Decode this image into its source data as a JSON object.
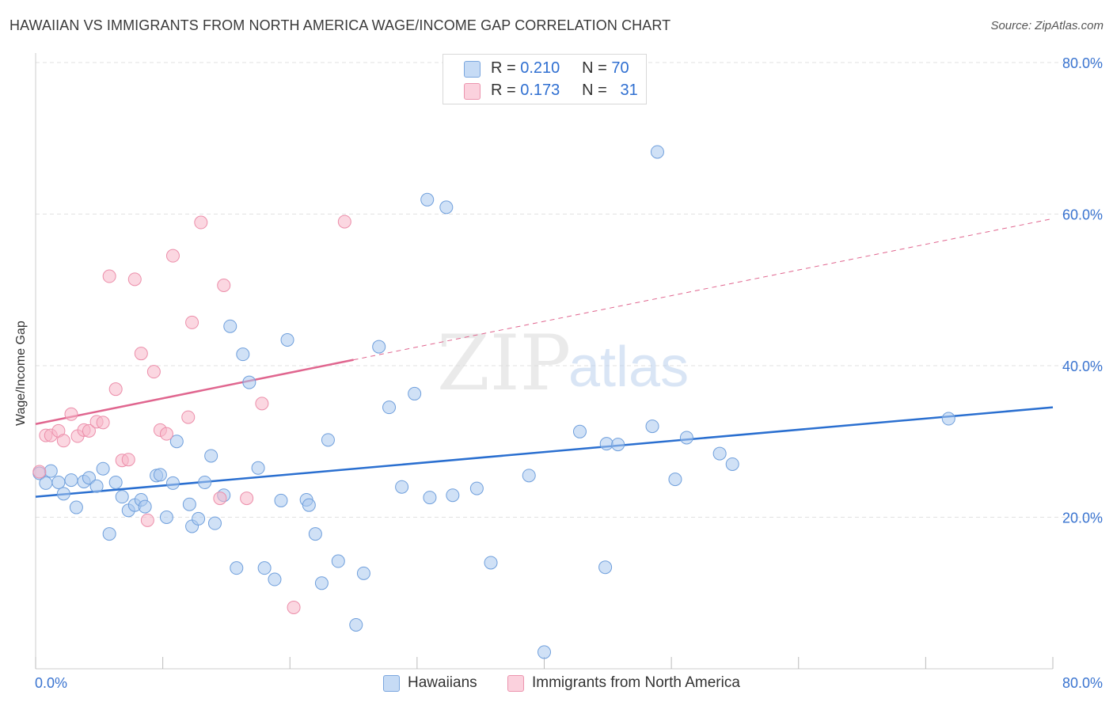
{
  "title": "HAWAIIAN VS IMMIGRANTS FROM NORTH AMERICA WAGE/INCOME GAP CORRELATION CHART",
  "source": "Source: ZipAtlas.com",
  "watermark": {
    "zip": "ZIP",
    "atlas": "atlas"
  },
  "legend": {
    "rows": [
      {
        "r_label": "R =",
        "r_value": "0.210",
        "n_label": "N =",
        "n_value": "70",
        "color": "#a9c8ef"
      },
      {
        "r_label": "R =",
        "r_value": "0.173",
        "n_label": "N =",
        "n_value": "31",
        "color": "#f7b6c8"
      }
    ]
  },
  "bottom_legend": [
    {
      "label": "Hawaiians",
      "color": "#a9c8ef"
    },
    {
      "label": "Immigrants from North America",
      "color": "#f7b6c8"
    }
  ],
  "chart_data": {
    "type": "scatter",
    "title": "HAWAIIAN VS IMMIGRANTS FROM NORTH AMERICA WAGE/INCOME GAP CORRELATION CHART",
    "xlabel": "",
    "ylabel": "Wage/Income Gap",
    "xlim": [
      0,
      80
    ],
    "ylim": [
      0,
      84
    ],
    "x_tick_labels": [
      "0.0%",
      "80.0%"
    ],
    "y_ticks": [
      20,
      40,
      60,
      80
    ],
    "y_tick_labels": [
      "20.0%",
      "40.0%",
      "60.0%",
      "80.0%"
    ],
    "grid": true,
    "legend_position": "top-center",
    "series": [
      {
        "name": "Hawaiians",
        "color": "#a9c8ef",
        "edge": "#6f9fdc",
        "line_color": "#2a6fd0",
        "trend": {
          "x0": 0,
          "y0": 22.7,
          "x1": 80,
          "y1": 34.5,
          "dashed_from": null
        },
        "points": [
          [
            0.3,
            25.8
          ],
          [
            0.8,
            24.5
          ],
          [
            1.2,
            26.1
          ],
          [
            1.8,
            24.6
          ],
          [
            2.2,
            23.1
          ],
          [
            2.8,
            24.9
          ],
          [
            3.2,
            21.3
          ],
          [
            3.8,
            24.7
          ],
          [
            4.2,
            25.2
          ],
          [
            4.8,
            24.1
          ],
          [
            5.3,
            26.4
          ],
          [
            5.8,
            17.8
          ],
          [
            6.3,
            24.6
          ],
          [
            6.8,
            22.7
          ],
          [
            7.3,
            20.9
          ],
          [
            7.8,
            21.6
          ],
          [
            8.3,
            22.3
          ],
          [
            8.6,
            21.4
          ],
          [
            9.5,
            25.5
          ],
          [
            9.8,
            25.6
          ],
          [
            10.3,
            20.0
          ],
          [
            10.8,
            24.5
          ],
          [
            11.1,
            30.0
          ],
          [
            12.1,
            21.7
          ],
          [
            12.3,
            18.8
          ],
          [
            12.8,
            19.8
          ],
          [
            13.3,
            24.6
          ],
          [
            13.8,
            28.1
          ],
          [
            14.1,
            19.2
          ],
          [
            14.8,
            22.9
          ],
          [
            15.3,
            45.2
          ],
          [
            15.8,
            13.3
          ],
          [
            16.3,
            41.5
          ],
          [
            16.8,
            37.8
          ],
          [
            17.5,
            26.5
          ],
          [
            18.0,
            13.3
          ],
          [
            18.8,
            11.8
          ],
          [
            19.3,
            22.2
          ],
          [
            19.8,
            43.4
          ],
          [
            21.3,
            22.3
          ],
          [
            21.5,
            21.6
          ],
          [
            22.0,
            17.8
          ],
          [
            22.5,
            11.3
          ],
          [
            23.0,
            30.2
          ],
          [
            23.8,
            14.2
          ],
          [
            25.2,
            5.8
          ],
          [
            25.8,
            12.6
          ],
          [
            27.0,
            42.5
          ],
          [
            27.8,
            34.5
          ],
          [
            28.8,
            24.0
          ],
          [
            29.8,
            36.3
          ],
          [
            30.8,
            61.9
          ],
          [
            31.0,
            22.6
          ],
          [
            32.3,
            60.9
          ],
          [
            32.8,
            22.9
          ],
          [
            34.7,
            23.8
          ],
          [
            35.8,
            14.0
          ],
          [
            38.8,
            25.5
          ],
          [
            40.0,
            2.2
          ],
          [
            42.8,
            31.3
          ],
          [
            44.8,
            13.4
          ],
          [
            44.9,
            29.7
          ],
          [
            45.8,
            29.6
          ],
          [
            48.5,
            32.0
          ],
          [
            48.9,
            68.2
          ],
          [
            50.3,
            25.0
          ],
          [
            51.2,
            30.5
          ],
          [
            53.8,
            28.4
          ],
          [
            54.8,
            27.0
          ],
          [
            71.8,
            33.0
          ]
        ]
      },
      {
        "name": "Immigrants from North America",
        "color": "#f7b6c8",
        "edge": "#ec8eaa",
        "line_color": "#e0668f",
        "trend": {
          "x0": 0,
          "y0": 32.3,
          "x1": 80,
          "y1": 59.4,
          "dashed_from": 25
        },
        "points": [
          [
            0.3,
            26.0
          ],
          [
            0.8,
            30.8
          ],
          [
            1.2,
            30.8
          ],
          [
            1.8,
            31.4
          ],
          [
            2.2,
            30.1
          ],
          [
            2.8,
            33.6
          ],
          [
            3.3,
            30.7
          ],
          [
            3.8,
            31.5
          ],
          [
            4.2,
            31.4
          ],
          [
            4.8,
            32.6
          ],
          [
            5.3,
            32.5
          ],
          [
            5.8,
            51.8
          ],
          [
            6.3,
            36.9
          ],
          [
            6.8,
            27.5
          ],
          [
            7.3,
            27.6
          ],
          [
            7.8,
            51.4
          ],
          [
            8.3,
            41.6
          ],
          [
            8.8,
            19.6
          ],
          [
            9.3,
            39.2
          ],
          [
            9.8,
            31.5
          ],
          [
            10.3,
            31.0
          ],
          [
            10.8,
            54.5
          ],
          [
            12.0,
            33.2
          ],
          [
            12.3,
            45.7
          ],
          [
            13.0,
            58.9
          ],
          [
            14.5,
            22.5
          ],
          [
            14.8,
            50.6
          ],
          [
            16.6,
            22.5
          ],
          [
            17.8,
            35.0
          ],
          [
            20.3,
            8.1
          ],
          [
            24.3,
            59.0
          ]
        ]
      }
    ]
  }
}
